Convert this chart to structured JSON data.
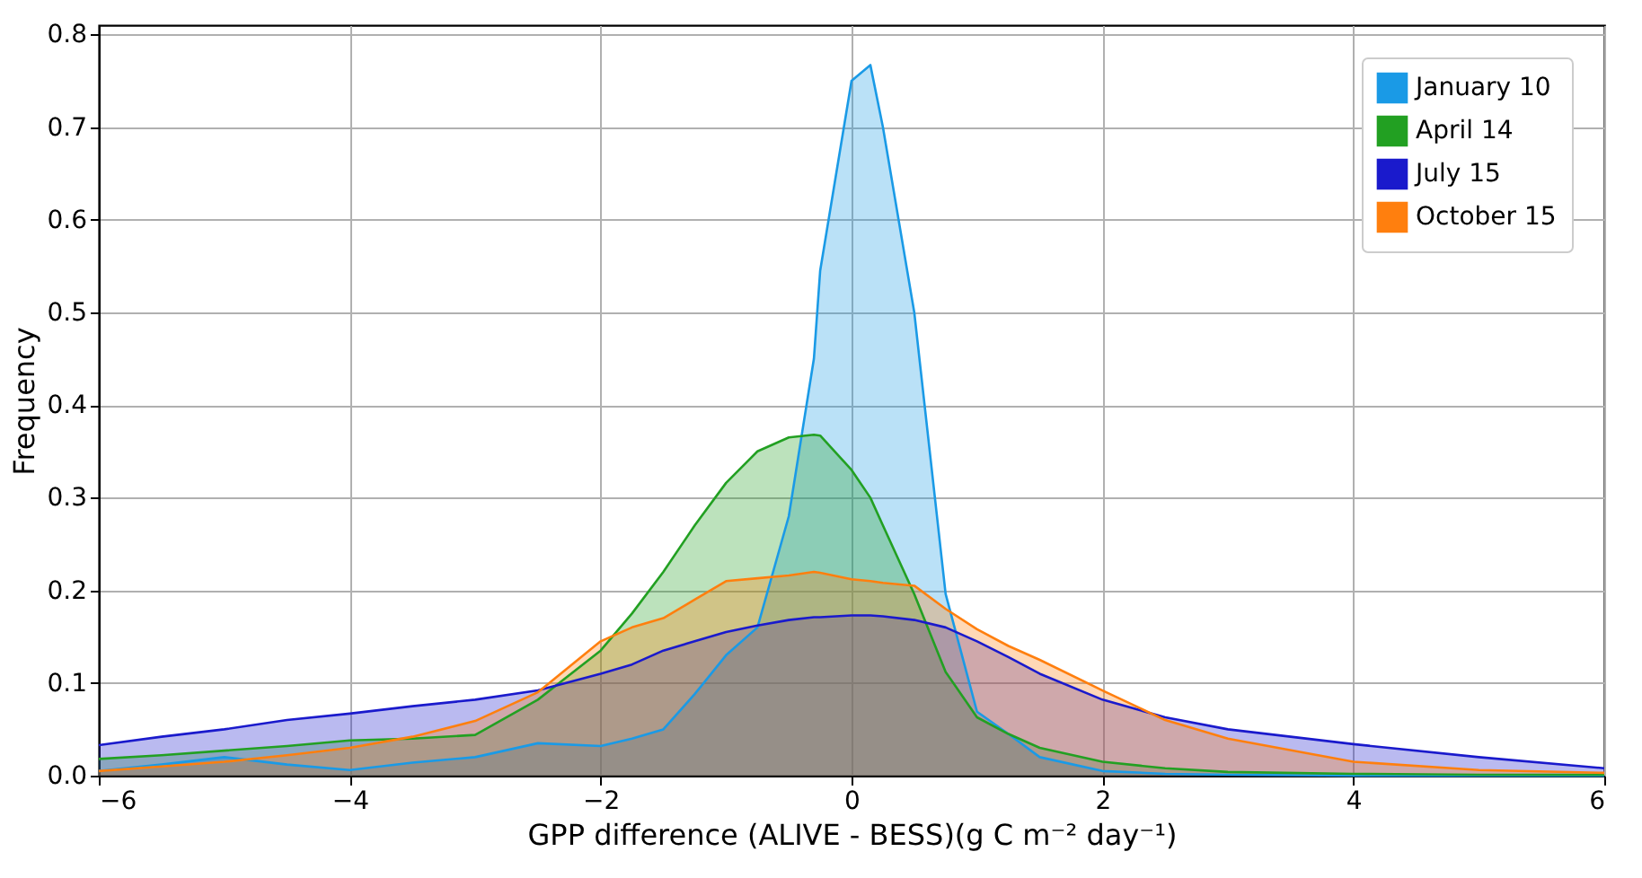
{
  "chart_data": {
    "type": "area",
    "xlabel": "GPP difference (ALIVE - BESS)(g C m⁻² day⁻¹)",
    "ylabel": "Frequency",
    "xlim": [
      -6,
      6
    ],
    "xticks": [
      -6,
      -4,
      -2,
      0,
      2,
      4,
      6
    ],
    "ylim": [
      0,
      0.81
    ],
    "yticks": [
      {
        "value": 0,
        "label": "0.0"
      },
      0.1,
      0.2,
      0.3,
      0.4,
      0.5,
      0.6,
      0.7,
      0.8
    ],
    "grid": true,
    "legend": "top right",
    "x": [
      -6,
      -5.5,
      -5,
      -4.5,
      -4,
      -3.5,
      -3,
      -2.5,
      -2,
      -1.75,
      -1.5,
      -1.25,
      -1,
      -0.75,
      -0.5,
      -0.3,
      -0.25,
      0,
      0.15,
      0.25,
      0.5,
      0.75,
      1,
      1.25,
      1.5,
      2,
      2.5,
      3,
      4,
      5,
      6
    ],
    "series": [
      {
        "name": "January 10",
        "color": "#1a9ae6",
        "values": [
          0.005,
          0.012,
          0.02,
          0.012,
          0.006,
          0.014,
          0.02,
          0.035,
          0.032,
          0.04,
          0.05,
          0.088,
          0.13,
          0.16,
          0.28,
          0.45,
          0.545,
          0.75,
          0.767,
          0.7,
          0.5,
          0.196,
          0.069,
          0.045,
          0.02,
          0.005,
          0.002,
          0.001,
          0,
          0,
          0
        ]
      },
      {
        "name": "April 14",
        "color": "#22a022",
        "values": [
          0.018,
          0.022,
          0.027,
          0.032,
          0.038,
          0.04,
          0.044,
          0.082,
          0.135,
          0.175,
          0.22,
          0.27,
          0.316,
          0.35,
          0.365,
          0.368,
          0.367,
          0.33,
          0.3,
          0.27,
          0.196,
          0.112,
          0.063,
          0.045,
          0.03,
          0.015,
          0.008,
          0.004,
          0.002,
          0.001,
          0.001
        ]
      },
      {
        "name": "July 15",
        "color": "#1a1acc",
        "values": [
          0.033,
          0.042,
          0.05,
          0.06,
          0.067,
          0.075,
          0.082,
          0.092,
          0.11,
          0.12,
          0.135,
          0.145,
          0.155,
          0.162,
          0.168,
          0.171,
          0.171,
          0.173,
          0.173,
          0.172,
          0.168,
          0.16,
          0.145,
          0.128,
          0.11,
          0.082,
          0.063,
          0.05,
          0.034,
          0.02,
          0.008
        ]
      },
      {
        "name": "October 15",
        "color": "#ff7f0e",
        "values": [
          0.005,
          0.01,
          0.015,
          0.022,
          0.03,
          0.042,
          0.059,
          0.09,
          0.145,
          0.16,
          0.17,
          0.19,
          0.21,
          0.213,
          0.216,
          0.22,
          0.219,
          0.212,
          0.21,
          0.208,
          0.205,
          0.18,
          0.158,
          0.14,
          0.125,
          0.092,
          0.06,
          0.04,
          0.015,
          0.006,
          0.003
        ]
      }
    ]
  }
}
